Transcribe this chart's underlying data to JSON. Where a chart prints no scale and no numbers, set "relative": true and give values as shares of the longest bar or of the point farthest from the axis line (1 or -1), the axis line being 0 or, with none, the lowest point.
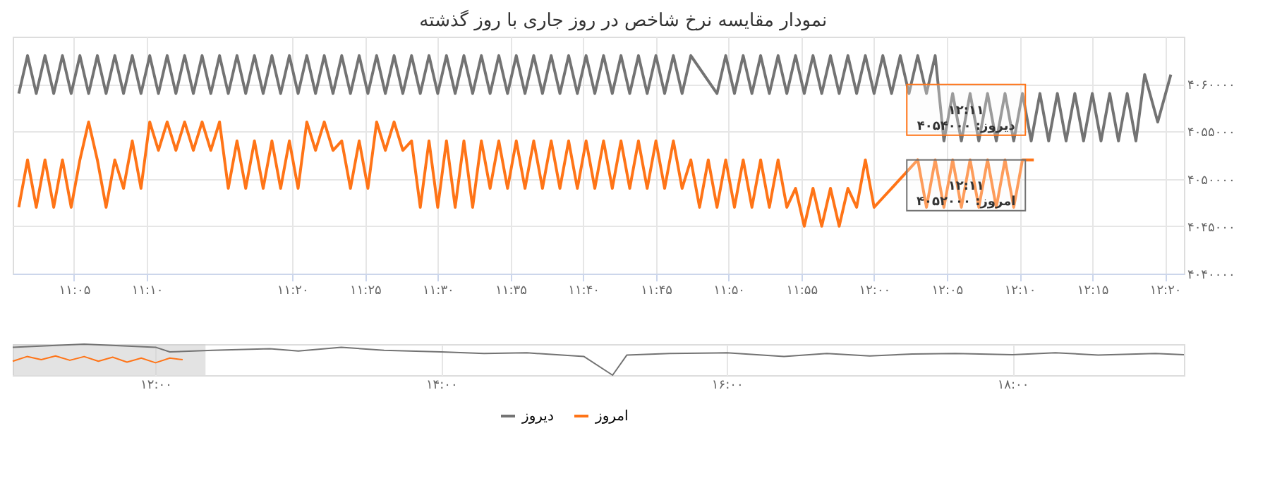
{
  "chart_data": [
    {
      "type": "line",
      "title": "نمودار مقایسه نرخ شاخص در روز جاری با روز گذشته",
      "legend": "bottom",
      "grid": true,
      "line_style": "solid",
      "xlim": [
        11.013,
        12.355
      ],
      "xticks": [
        {
          "value": 11.0833,
          "label": "۱۱:۰۵"
        },
        {
          "value": 11.1667,
          "label": "۱۱:۱۰"
        },
        {
          "value": 11.3333,
          "label": "۱۱:۲۰"
        },
        {
          "value": 11.4167,
          "label": "۱۱:۲۵"
        },
        {
          "value": 11.5,
          "label": "۱۱:۳۰"
        },
        {
          "value": 11.5833,
          "label": "۱۱:۳۵"
        },
        {
          "value": 11.6667,
          "label": "۱۱:۴۰"
        },
        {
          "value": 11.75,
          "label": "۱۱:۴۵"
        },
        {
          "value": 11.8333,
          "label": "۱۱:۵۰"
        },
        {
          "value": 11.9167,
          "label": "۱۱:۵۵"
        },
        {
          "value": 12.0,
          "label": "۱۲:۰۰"
        },
        {
          "value": 12.0833,
          "label": "۱۲:۰۵"
        },
        {
          "value": 12.1667,
          "label": "۱۲:۱۰"
        },
        {
          "value": 12.25,
          "label": "۱۲:۱۵"
        },
        {
          "value": 12.3333,
          "label": "۱۲:۲۰"
        }
      ],
      "ylim": [
        4040000,
        4065000
      ],
      "yticks": [
        {
          "value": 4040000,
          "label": "۴۰۴۰۰۰۰"
        },
        {
          "value": 4045000,
          "label": "۴۰۴۵۰۰۰"
        },
        {
          "value": 4050000,
          "label": "۴۰۵۰۰۰۰"
        },
        {
          "value": 4055000,
          "label": "۴۰۵۵۰۰۰"
        },
        {
          "value": 4060000,
          "label": "۴۰۶۰۰۰۰"
        }
      ],
      "annotations": [
        {
          "text": "۱۲:۱۱\nدیروز: ۴۰۵۴۰۰۰",
          "x": 12.183,
          "y": 4054000
        },
        {
          "text": "۱۲:۱۱\nامروز: ۴۰۵۲۰۰۰",
          "x": 12.183,
          "y": 4052000
        }
      ],
      "series": [
        {
          "name": "دیروز",
          "color": "#737373",
          "x": [
            11.02,
            11.03,
            11.04,
            11.05,
            11.06,
            11.07,
            11.08,
            11.09,
            11.1,
            11.11,
            11.12,
            11.13,
            11.14,
            11.15,
            11.16,
            11.17,
            11.18,
            11.19,
            11.2,
            11.21,
            11.22,
            11.23,
            11.24,
            11.25,
            11.26,
            11.27,
            11.28,
            11.29,
            11.3,
            11.31,
            11.32,
            11.33,
            11.34,
            11.35,
            11.36,
            11.37,
            11.38,
            11.39,
            11.4,
            11.41,
            11.42,
            11.43,
            11.44,
            11.45,
            11.46,
            11.47,
            11.48,
            11.49,
            11.5,
            11.51,
            11.52,
            11.53,
            11.54,
            11.55,
            11.56,
            11.57,
            11.58,
            11.59,
            11.6,
            11.61,
            11.62,
            11.63,
            11.64,
            11.65,
            11.66,
            11.67,
            11.68,
            11.69,
            11.7,
            11.71,
            11.72,
            11.73,
            11.74,
            11.75,
            11.76,
            11.77,
            11.78,
            11.79,
            11.82,
            11.83,
            11.84,
            11.85,
            11.86,
            11.87,
            11.88,
            11.89,
            11.9,
            11.91,
            11.92,
            11.93,
            11.94,
            11.95,
            11.96,
            11.97,
            11.98,
            11.99,
            12.0,
            12.01,
            12.02,
            12.03,
            12.04,
            12.05,
            12.06,
            12.07,
            12.08,
            12.09,
            12.1,
            12.11,
            12.12,
            12.13,
            12.14,
            12.15,
            12.16,
            12.17,
            12.18,
            12.19,
            12.2,
            12.21,
            12.22,
            12.23,
            12.24,
            12.25,
            12.26,
            12.27,
            12.28,
            12.29,
            12.3,
            12.31,
            12.325,
            12.34
          ],
          "values": [
            4059000,
            4063000,
            4059000,
            4063000,
            4059000,
            4063000,
            4059000,
            4063000,
            4059000,
            4063000,
            4059000,
            4063000,
            4059000,
            4063000,
            4059000,
            4063000,
            4059000,
            4063000,
            4059000,
            4063000,
            4059000,
            4063000,
            4059000,
            4063000,
            4059000,
            4063000,
            4059000,
            4063000,
            4059000,
            4063000,
            4059000,
            4063000,
            4059000,
            4063000,
            4059000,
            4063000,
            4059000,
            4063000,
            4059000,
            4063000,
            4059000,
            4063000,
            4059000,
            4063000,
            4059000,
            4063000,
            4059000,
            4063000,
            4059000,
            4063000,
            4059000,
            4063000,
            4059000,
            4063000,
            4059000,
            4063000,
            4059000,
            4063000,
            4059000,
            4063000,
            4059000,
            4063000,
            4059000,
            4063000,
            4059000,
            4063000,
            4059000,
            4063000,
            4059000,
            4063000,
            4059000,
            4063000,
            4059000,
            4063000,
            4059000,
            4063000,
            4059000,
            4063000,
            4059000,
            4063000,
            4059000,
            4063000,
            4059000,
            4063000,
            4059000,
            4063000,
            4059000,
            4063000,
            4059000,
            4063000,
            4059000,
            4063000,
            4059000,
            4063000,
            4059000,
            4063000,
            4059000,
            4063000,
            4059000,
            4063000,
            4059000,
            4063000,
            4059000,
            4063000,
            4054000,
            4059000,
            4054000,
            4059000,
            4054000,
            4059000,
            4054000,
            4059000,
            4054000,
            4059000,
            4054000,
            4059000,
            4054000,
            4059000,
            4054000,
            4059000,
            4054000,
            4059000,
            4054000,
            4059000,
            4054000,
            4059000,
            4054000,
            4061000,
            4056000,
            4061000
          ]
        },
        {
          "name": "امروز",
          "color": "#ff7417",
          "x": [
            11.02,
            11.03,
            11.04,
            11.05,
            11.06,
            11.07,
            11.08,
            11.09,
            11.1,
            11.11,
            11.12,
            11.13,
            11.14,
            11.15,
            11.16,
            11.17,
            11.18,
            11.19,
            11.2,
            11.21,
            11.22,
            11.23,
            11.24,
            11.25,
            11.26,
            11.27,
            11.28,
            11.29,
            11.3,
            11.31,
            11.32,
            11.33,
            11.34,
            11.35,
            11.36,
            11.37,
            11.38,
            11.39,
            11.4,
            11.41,
            11.42,
            11.43,
            11.44,
            11.45,
            11.46,
            11.47,
            11.48,
            11.49,
            11.5,
            11.51,
            11.52,
            11.53,
            11.54,
            11.55,
            11.56,
            11.57,
            11.58,
            11.59,
            11.6,
            11.61,
            11.62,
            11.63,
            11.64,
            11.65,
            11.66,
            11.67,
            11.68,
            11.69,
            11.7,
            11.71,
            11.72,
            11.73,
            11.74,
            11.75,
            11.76,
            11.77,
            11.78,
            11.79,
            11.8,
            11.81,
            11.82,
            11.83,
            11.84,
            11.85,
            11.86,
            11.87,
            11.88,
            11.89,
            11.9,
            11.91,
            11.92,
            11.93,
            11.94,
            11.95,
            11.96,
            11.97,
            11.98,
            11.99,
            12.0,
            12.01,
            12.02,
            12.03,
            12.04,
            12.05,
            12.06,
            12.07,
            12.08,
            12.09,
            12.1,
            12.11,
            12.12,
            12.13,
            12.14,
            12.15,
            12.16,
            12.17,
            12.183
          ],
          "values": [
            4047000,
            4052000,
            4047000,
            4052000,
            4047000,
            4052000,
            4047000,
            4052000,
            4056000,
            4052000,
            4047000,
            4052000,
            4049000,
            4054000,
            4049000,
            4056000,
            4053000,
            4056000,
            4053000,
            4056000,
            4053000,
            4056000,
            4053000,
            4056000,
            4049000,
            4054000,
            4049000,
            4054000,
            4049000,
            4054000,
            4049000,
            4054000,
            4049000,
            4056000,
            4053000,
            4056000,
            4053000,
            4054000,
            4049000,
            4054000,
            4049000,
            4056000,
            4053000,
            4056000,
            4053000,
            4054000,
            4047000,
            4054000,
            4047000,
            4054000,
            4047000,
            4054000,
            4047000,
            4054000,
            4049000,
            4054000,
            4049000,
            4054000,
            4049000,
            4054000,
            4049000,
            4054000,
            4049000,
            4054000,
            4049000,
            4054000,
            4049000,
            4054000,
            4049000,
            4054000,
            4049000,
            4054000,
            4049000,
            4054000,
            4049000,
            4054000,
            4049000,
            4052000,
            4047000,
            4052000,
            4047000,
            4052000,
            4047000,
            4052000,
            4047000,
            4052000,
            4047000,
            4052000,
            4047000,
            4049000,
            4045000,
            4049000,
            4045000,
            4049000,
            4045000,
            4049000,
            4047000,
            4052000,
            4047000,
            4048000,
            4049000,
            4050000,
            4051000,
            4052000,
            4047000,
            4052000,
            4047000,
            4052000,
            4047000,
            4052000,
            4047000,
            4052000,
            4047000,
            4052000,
            4047000,
            4052000,
            4052000
          ]
        }
      ]
    },
    {
      "type": "line",
      "relative": true,
      "tick_labels": "x",
      "grid": "x",
      "xlim": [
        11.0,
        19.2
      ],
      "xticks": [
        {
          "value": 12,
          "label": "۱۲:۰۰"
        },
        {
          "value": 14,
          "label": "۱۴:۰۰"
        },
        {
          "value": 16,
          "label": "۱۶:۰۰"
        },
        {
          "value": 18,
          "label": "۱۸:۰۰"
        }
      ],
      "bands": [
        {
          "axis": "x",
          "from": 11.0,
          "to": 12.35,
          "color": "#d0d0d0"
        }
      ],
      "series": [
        {
          "color": "#737373",
          "x": [
            11.0,
            11.5,
            12.0,
            12.1,
            12.4,
            12.8,
            13.0,
            13.3,
            13.6,
            14.0,
            14.3,
            14.6,
            15.0,
            15.2,
            15.3,
            15.6,
            16.0,
            16.4,
            16.7,
            17.0,
            17.3,
            17.6,
            18.0,
            18.3,
            18.6,
            19.0,
            19.2
          ],
          "values": [
            0.9,
            1.0,
            0.9,
            0.75,
            0.8,
            0.85,
            0.78,
            0.9,
            0.8,
            0.75,
            0.7,
            0.72,
            0.6,
            0,
            0.65,
            0.7,
            0.72,
            0.6,
            0.7,
            0.62,
            0.68,
            0.7,
            0.66,
            0.72,
            0.65,
            0.7,
            0.66
          ]
        },
        {
          "color": "#ff7417",
          "x": [
            11.0,
            11.1,
            11.2,
            11.3,
            11.4,
            11.5,
            11.6,
            11.7,
            11.8,
            11.9,
            12.0,
            12.1,
            12.19
          ],
          "values": [
            0.45,
            0.6,
            0.5,
            0.62,
            0.48,
            0.6,
            0.45,
            0.58,
            0.42,
            0.55,
            0.4,
            0.55,
            0.5
          ]
        }
      ]
    }
  ]
}
